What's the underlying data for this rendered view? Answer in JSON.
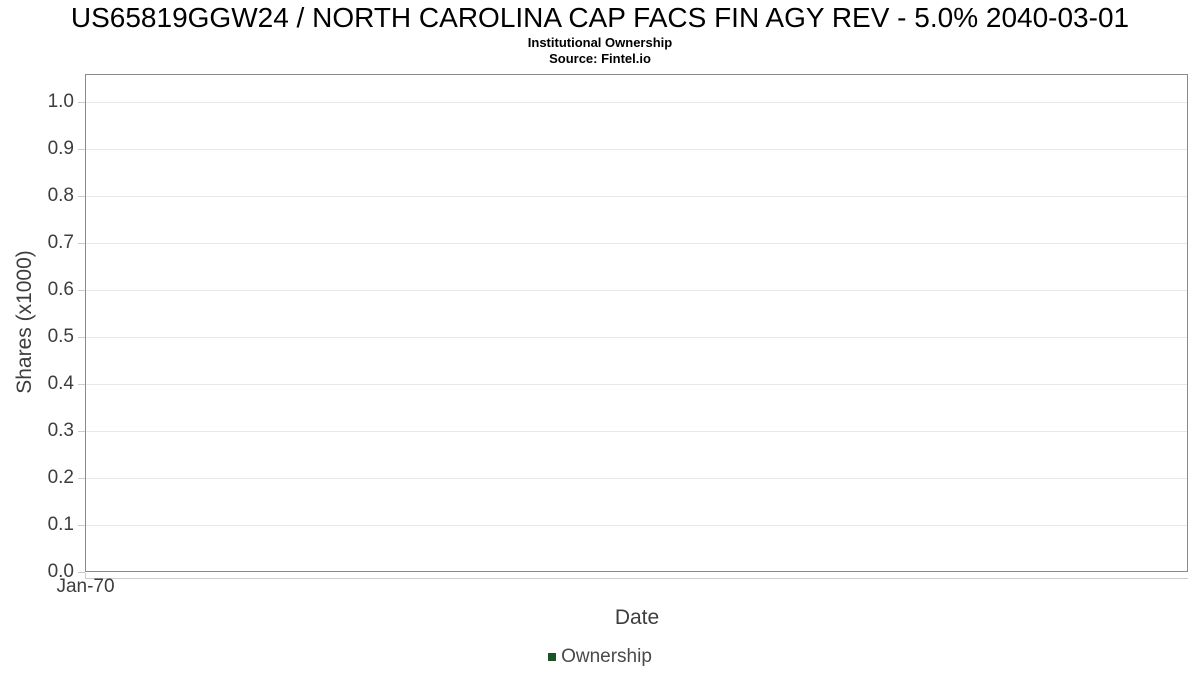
{
  "header": {
    "title": "US65819GGW24 / NORTH CAROLINA CAP FACS FIN AGY REV - 5.0% 2040-03-01",
    "subtitle": "Institutional Ownership",
    "source": "Source: Fintel.io"
  },
  "chart_data": {
    "type": "line",
    "title": "US65819GGW24 / NORTH CAROLINA CAP FACS FIN AGY REV - 5.0% 2040-03-01",
    "subtitle": "Institutional Ownership",
    "source": "Source: Fintel.io",
    "xlabel": "Date",
    "ylabel": "Shares (x1000)",
    "x_tick_labels": [
      "Jan-70"
    ],
    "y_tick_labels": [
      "0.0",
      "0.1",
      "0.2",
      "0.3",
      "0.4",
      "0.5",
      "0.6",
      "0.7",
      "0.8",
      "0.9",
      "1.0"
    ],
    "ylim": [
      0,
      1.06
    ],
    "grid": true,
    "legend_position": "bottom",
    "series": [
      {
        "name": "Ownership",
        "color": "#1c5428",
        "x": [],
        "y": []
      }
    ],
    "colors": {
      "plot_border": "#8a8a8a",
      "gridline": "#e8e8e8",
      "tick": "#cccccc",
      "tick_label": "#3d3d3d",
      "axis_title": "#3d3d3d",
      "legend_text": "#4a4a4a",
      "title_text": "#000000"
    }
  }
}
